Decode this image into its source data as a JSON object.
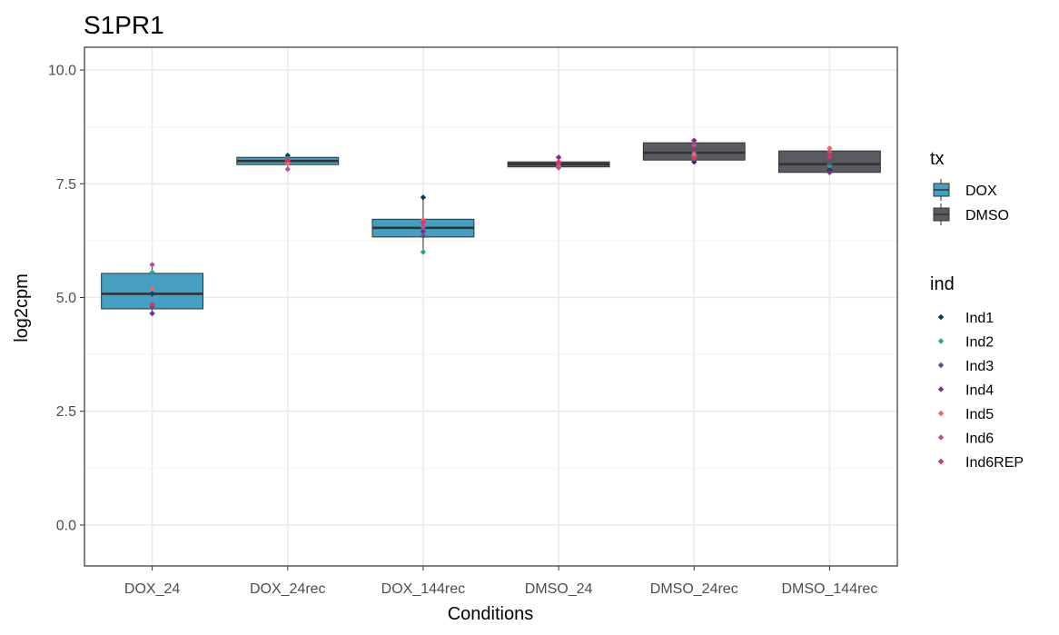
{
  "chart_data": {
    "type": "box",
    "title": "S1PR1",
    "xlabel": "Conditions",
    "ylabel": "log2cpm",
    "ylim": [
      -0.9,
      10.5
    ],
    "yticks": [
      0.0,
      2.5,
      5.0,
      7.5,
      10.0
    ],
    "ytick_labels": [
      "0.0",
      "2.5",
      "5.0",
      "7.5",
      "10.0"
    ],
    "grid": true,
    "categories": [
      "DOX_24",
      "DOX_24rec",
      "DOX_144rec",
      "DMSO_24",
      "DMSO_24rec",
      "DMSO_144rec"
    ],
    "boxes": [
      {
        "category": "DOX_24",
        "tx": "DOX",
        "q1": 4.75,
        "median": 5.08,
        "q3": 5.53,
        "whisker_low": 4.65,
        "whisker_high": 5.72
      },
      {
        "category": "DOX_24rec",
        "tx": "DOX",
        "q1": 7.92,
        "median": 8.0,
        "q3": 8.08,
        "whisker_low": 7.82,
        "whisker_high": 8.12
      },
      {
        "category": "DOX_144rec",
        "tx": "DOX",
        "q1": 6.33,
        "median": 6.53,
        "q3": 6.72,
        "whisker_low": 6.0,
        "whisker_high": 7.2
      },
      {
        "category": "DMSO_24",
        "tx": "DMSO",
        "q1": 7.87,
        "median": 7.93,
        "q3": 7.98,
        "whisker_low": 7.85,
        "whisker_high": 8.08
      },
      {
        "category": "DMSO_24rec",
        "tx": "DMSO",
        "q1": 8.02,
        "median": 8.18,
        "q3": 8.4,
        "whisker_low": 7.98,
        "whisker_high": 8.45
      },
      {
        "category": "DMSO_144rec",
        "tx": "DMSO",
        "q1": 7.75,
        "median": 7.93,
        "q3": 8.22,
        "whisker_low": 7.75,
        "whisker_high": 8.28
      }
    ],
    "series": [
      {
        "name": "Ind1",
        "color": "#003f5c",
        "values": [
          5.08,
          8.12,
          7.2,
          7.93,
          7.98,
          7.8
        ]
      },
      {
        "name": "Ind2",
        "color": "#2ca58d",
        "values": [
          5.55,
          8.05,
          6.0,
          7.95,
          8.1,
          7.9
        ]
      },
      {
        "name": "Ind3",
        "color": "#58508d",
        "values": [
          4.8,
          7.98,
          6.35,
          7.9,
          8.2,
          7.95
        ]
      },
      {
        "name": "Ind4",
        "color": "#7b2c8f",
        "values": [
          4.65,
          8.0,
          6.45,
          8.08,
          8.45,
          7.75
        ]
      },
      {
        "name": "Ind5",
        "color": "#ff6361",
        "values": [
          5.2,
          7.95,
          6.7,
          7.88,
          8.15,
          8.28
        ]
      },
      {
        "name": "Ind6",
        "color": "#bc5090",
        "values": [
          5.72,
          7.82,
          6.55,
          7.85,
          8.35,
          8.2
        ]
      },
      {
        "name": "Ind6REP",
        "color": "#ef2a6a",
        "values": [
          4.85,
          8.02,
          6.65,
          7.98,
          8.05,
          8.1
        ]
      }
    ],
    "legend_tx": {
      "title": "tx",
      "items": [
        {
          "label": "DOX",
          "color": "#449fc1"
        },
        {
          "label": "DMSO",
          "color": "#5a5a63"
        }
      ]
    },
    "legend_ind": {
      "title": "ind",
      "items": [
        "Ind1",
        "Ind2",
        "Ind3",
        "Ind4",
        "Ind5",
        "Ind6",
        "Ind6REP"
      ]
    },
    "legend_position": "right"
  }
}
